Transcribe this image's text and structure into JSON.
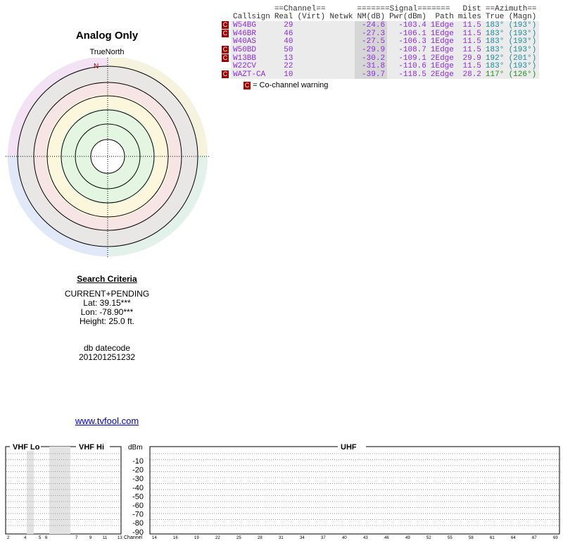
{
  "page": {
    "title": "Analog Only",
    "compass_label": "TrueNorth",
    "north_marker": "N"
  },
  "criteria": {
    "heading": "Search Criteria",
    "mode": "CURRENT+PENDING",
    "lat": "Lat: 39.15***",
    "lon": "Lon: -78.90***",
    "height": "Height: 25.0 ft.",
    "db_label": "db datecode",
    "db_value": "201201251232",
    "link": "www.tvfool.com"
  },
  "table": {
    "group_headers": {
      "channel": "==Channel==",
      "signal": "=======Signal=======",
      "dist": "Dist",
      "azimuth": "==Azimuth=="
    },
    "columns": [
      "Callsign",
      "Real",
      "(Virt)",
      "Netwk",
      "NM(dB)",
      "Pwr(dBm)",
      "Path",
      "miles",
      "True",
      "(Magn)"
    ],
    "cochannel_marker": "C",
    "rows": [
      {
        "callsign": "W54BG",
        "real": "29",
        "virt": "",
        "netwk": "",
        "nm": "-24.6",
        "pwr": "-103.4",
        "path": "1Edge",
        "miles": "11.5",
        "az_true": "183°",
        "az_magn": "(193°)",
        "cochannel": true
      },
      {
        "callsign": "W46BR",
        "real": "46",
        "virt": "",
        "netwk": "",
        "nm": "-27.3",
        "pwr": "-106.1",
        "path": "1Edge",
        "miles": "11.5",
        "az_true": "183°",
        "az_magn": "(193°)",
        "cochannel": true
      },
      {
        "callsign": "W40AS",
        "real": "40",
        "virt": "",
        "netwk": "",
        "nm": "-27.5",
        "pwr": "-106.3",
        "path": "1Edge",
        "miles": "11.5",
        "az_true": "183°",
        "az_magn": "(193°)",
        "cochannel": false
      },
      {
        "callsign": "W50BD",
        "real": "50",
        "virt": "",
        "netwk": "",
        "nm": "-29.9",
        "pwr": "-108.7",
        "path": "1Edge",
        "miles": "11.5",
        "az_true": "183°",
        "az_magn": "(193°)",
        "cochannel": true
      },
      {
        "callsign": "W13BB",
        "real": "13",
        "virt": "",
        "netwk": "",
        "nm": "-30.2",
        "pwr": "-109.1",
        "path": "2Edge",
        "miles": "29.9",
        "az_true": "192°",
        "az_magn": "(201°)",
        "cochannel": true
      },
      {
        "callsign": "W22CV",
        "real": "22",
        "virt": "",
        "netwk": "",
        "nm": "-31.8",
        "pwr": "-110.6",
        "path": "1Edge",
        "miles": "11.5",
        "az_true": "183°",
        "az_magn": "(193°)",
        "cochannel": false
      },
      {
        "callsign": "WAZT-CA",
        "real": "10",
        "virt": "",
        "netwk": "",
        "nm": "-39.7",
        "pwr": "-118.5",
        "path": "2Edge",
        "miles": "28.2",
        "az_true": "117°",
        "az_magn": "(126°)",
        "cochannel": true,
        "green": true
      }
    ],
    "legend": "= Co-channel warning"
  },
  "spectrum": {
    "bands": [
      "VHF Lo",
      "VHF Hi",
      "UHF"
    ],
    "unit_label": "dBm",
    "dbm_ticks": [
      "-10",
      "-20",
      "-30",
      "-40",
      "-50",
      "-60",
      "-70",
      "-80",
      "-90"
    ],
    "channel_label": "Channel",
    "vhf_lo_ticks": [
      "2",
      "4",
      "5",
      "6"
    ],
    "vhf_hi_ticks": [
      "7",
      "9",
      "11",
      "13"
    ],
    "uhf_ticks": [
      "14",
      "16",
      "19",
      "22",
      "25",
      "28",
      "31",
      "34",
      "37",
      "40",
      "43",
      "46",
      "49",
      "52",
      "55",
      "58",
      "61",
      "64",
      "67",
      "69"
    ]
  },
  "colors": {
    "cochannel": "#a00000",
    "callsign": "#8a2be2",
    "azimuth": "#1a8a9a",
    "azimuth_green": "#228b22",
    "link": "#0000cc"
  }
}
